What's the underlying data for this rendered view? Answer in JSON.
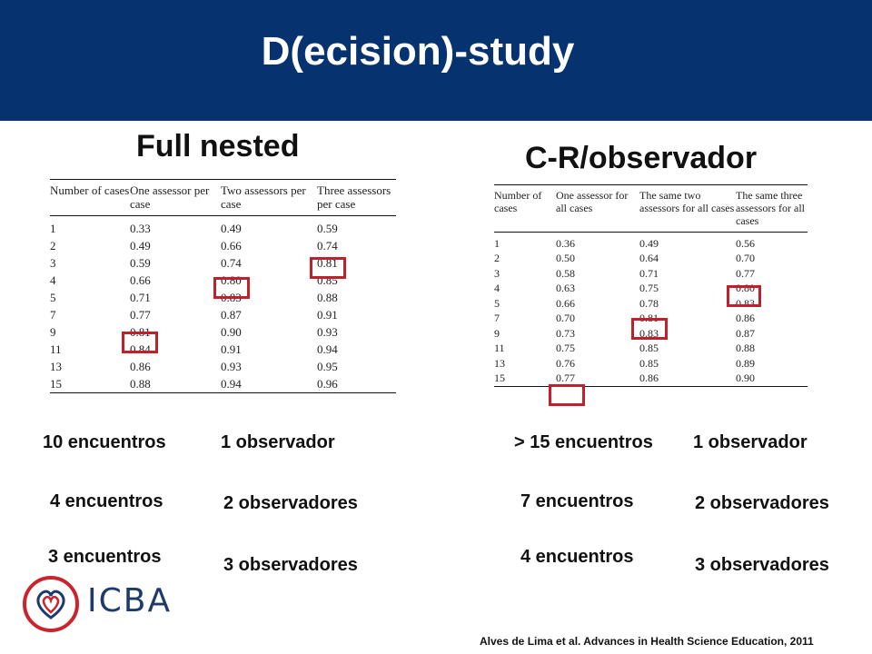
{
  "title": "D(ecision)-study",
  "left": {
    "heading": "Full nested",
    "headers": [
      "Number of cases",
      "One assessor per case",
      "Two assessors per case",
      "Three assessors per case"
    ],
    "rows": [
      [
        "1",
        "0.33",
        "0.49",
        "0.59"
      ],
      [
        "2",
        "0.49",
        "0.66",
        "0.74"
      ],
      [
        "3",
        "0.59",
        "0.74",
        "0.81"
      ],
      [
        "4",
        "0.66",
        "0.80",
        "0.85"
      ],
      [
        "5",
        "0.71",
        "0.83",
        "0.88"
      ],
      [
        "7",
        "0.77",
        "0.87",
        "0.91"
      ],
      [
        "9",
        "0.81",
        "0.90",
        "0.93"
      ],
      [
        "11",
        "0.84",
        "0.91",
        "0.94"
      ],
      [
        "13",
        "0.86",
        "0.93",
        "0.95"
      ],
      [
        "15",
        "0.88",
        "0.94",
        "0.96"
      ]
    ],
    "captions": [
      "10 encuentros",
      "1 observador",
      "4 encuentros",
      "2 observadores",
      "3 encuentros",
      "3 observadores"
    ]
  },
  "right": {
    "heading": "C-R/observador",
    "headers": [
      "Number of cases",
      "One assessor for all cases",
      "The same two assessors for all cases",
      "The same three assessors for all cases"
    ],
    "rows": [
      [
        "1",
        "0.36",
        "0.49",
        "0.56"
      ],
      [
        "2",
        "0.50",
        "0.64",
        "0.70"
      ],
      [
        "3",
        "0.58",
        "0.71",
        "0.77"
      ],
      [
        "4",
        "0.63",
        "0.75",
        "0.80"
      ],
      [
        "5",
        "0.66",
        "0.78",
        "0.83"
      ],
      [
        "7",
        "0.70",
        "0.81",
        "0.86"
      ],
      [
        "9",
        "0.73",
        "0.83",
        "0.87"
      ],
      [
        "11",
        "0.75",
        "0.85",
        "0.88"
      ],
      [
        "13",
        "0.76",
        "0.85",
        "0.89"
      ],
      [
        "15",
        "0.77",
        "0.86",
        "0.90"
      ]
    ],
    "captions": [
      "> 15 encuentros",
      "1 observador",
      "7 encuentros",
      "2 observadores",
      "4 encuentros",
      "3 observadores"
    ]
  },
  "logo": {
    "text": "ICBA"
  },
  "citation": "Alves de Lima et al. Advances in Health Science Education, 2011",
  "colors": {
    "header_bg": "#063370",
    "highlight": "#c0202a",
    "logo_red": "#c8262f",
    "logo_blue": "#1d3a6e"
  }
}
